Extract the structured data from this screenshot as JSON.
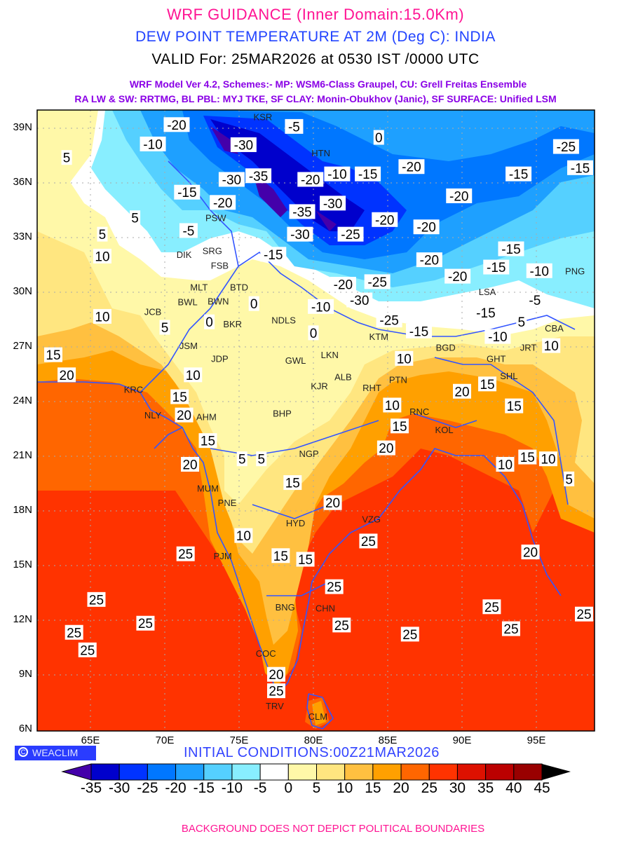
{
  "header": {
    "title": "WRF GUIDANCE (Inner Domain:15.0Km)",
    "subtitle": "DEW POINT TEMPERATURE AT 2M (Deg C): INDIA",
    "valid": "VALID For: 25MAR2026 at 0530 IST /0000 UTC",
    "model_line1": "WRF Model Ver 4.2, Schemes:- MP: WSM6-Class Graupel, CU: Grell Freitas Ensemble",
    "model_line2": "RA LW & SW: RRTMG, BL PBL: MYJ TKE, SF CLAY: Monin-Obukhov (Janic), SF SURFACE: Unified LSM"
  },
  "map": {
    "lat_labels": [
      "39N",
      "36N",
      "33N",
      "30N",
      "27N",
      "24N",
      "21N",
      "18N",
      "15N",
      "12N",
      "9N",
      "6N"
    ],
    "lon_labels": [
      "65E",
      "70E",
      "75E",
      "80E",
      "85E",
      "90E",
      "95E"
    ],
    "cities": [
      {
        "code": "KSR",
        "lon": 76.6,
        "lat": 39.8
      },
      {
        "code": "HTN",
        "lon": 80.5,
        "lat": 37.2
      },
      {
        "code": "PSW",
        "lon": 72.3,
        "lat": 34.1
      },
      {
        "code": "SRG",
        "lon": 73.2,
        "lat": 32.3
      },
      {
        "code": "DIK",
        "lon": 71.3,
        "lat": 32.1
      },
      {
        "code": "FSB",
        "lon": 73.7,
        "lat": 31.5
      },
      {
        "code": "MLT",
        "lon": 72.3,
        "lat": 30.3
      },
      {
        "code": "BWN",
        "lon": 73.6,
        "lat": 30.0
      },
      {
        "code": "BTD",
        "lon": 75.0,
        "lat": 30.3
      },
      {
        "code": "BWL",
        "lon": 72.2,
        "lat": 29.5
      },
      {
        "code": "JCB",
        "lon": 69.2,
        "lat": 28.5
      },
      {
        "code": "BKR",
        "lon": 73.9,
        "lat": 28.3
      },
      {
        "code": "NDLS",
        "lon": 78.0,
        "lat": 28.5
      },
      {
        "code": "JSM",
        "lon": 71.6,
        "lat": 27.1
      },
      {
        "code": "JDP",
        "lon": 73.7,
        "lat": 26.4
      },
      {
        "code": "GWL",
        "lon": 78.8,
        "lat": 26.3
      },
      {
        "code": "LKN",
        "lon": 81.1,
        "lat": 26.6
      },
      {
        "code": "ALB",
        "lon": 82.0,
        "lat": 25.4
      },
      {
        "code": "KJR",
        "lon": 80.4,
        "lat": 24.9
      },
      {
        "code": "PTN",
        "lon": 85.7,
        "lat": 25.7
      },
      {
        "code": "RHT",
        "lon": 84.6,
        "lat": 24.8
      },
      {
        "code": "KTM",
        "lon": 84.4,
        "lat": 27.6
      },
      {
        "code": "BGD",
        "lon": 88.9,
        "lat": 27.0
      },
      {
        "code": "GHT",
        "lon": 92.3,
        "lat": 26.4
      },
      {
        "code": "SHL",
        "lon": 92.4,
        "lat": 26.0
      },
      {
        "code": "JRT",
        "lon": 93.8,
        "lat": 27.0
      },
      {
        "code": "CBA",
        "lon": 96.2,
        "lat": 27.6
      },
      {
        "code": "LSA",
        "lon": 91.7,
        "lat": 29.6
      },
      {
        "code": "PNG",
        "lon": 97.6,
        "lat": 31.2
      },
      {
        "code": "KRC",
        "lon": 67.9,
        "lat": 24.7
      },
      {
        "code": "NLY",
        "lon": 69.2,
        "lat": 23.3
      },
      {
        "code": "AHM",
        "lon": 72.8,
        "lat": 23.2
      },
      {
        "code": "BHP",
        "lon": 77.9,
        "lat": 23.4
      },
      {
        "code": "RNC",
        "lon": 86.0,
        "lat": 23.5
      },
      {
        "code": "KOL",
        "lon": 88.8,
        "lat": 22.5
      },
      {
        "code": "NGP",
        "lon": 79.7,
        "lat": 21.2
      },
      {
        "code": "MUM",
        "lon": 72.9,
        "lat": 19.3
      },
      {
        "code": "PNE",
        "lon": 74.2,
        "lat": 18.5
      },
      {
        "code": "HYD",
        "lon": 78.8,
        "lat": 17.4
      },
      {
        "code": "VZG",
        "lon": 83.9,
        "lat": 17.6
      },
      {
        "code": "PJM",
        "lon": 73.9,
        "lat": 15.6
      },
      {
        "code": "BNG",
        "lon": 78.1,
        "lat": 12.8
      },
      {
        "code": "CHN",
        "lon": 80.8,
        "lat": 13.2
      },
      {
        "code": "COC",
        "lon": 76.8,
        "lat": 9.8
      },
      {
        "code": "TRV",
        "lon": 77.4,
        "lat": 8.6
      },
      {
        "code": "CLM",
        "lon": 80.3,
        "lat": 6.8
      }
    ],
    "contour_labels": [
      {
        "v": "-20",
        "lon": 70.8,
        "lat": 39.2
      },
      {
        "v": "-10",
        "lon": 69.2,
        "lat": 38.6
      },
      {
        "v": "-30",
        "lon": 75.3,
        "lat": 38.1
      },
      {
        "v": "-5",
        "lon": 78.7,
        "lat": 39.1
      },
      {
        "v": "0",
        "lon": 84.4,
        "lat": 38.5
      },
      {
        "v": "-25",
        "lon": 97.0,
        "lat": 38.0
      },
      {
        "v": "-15",
        "lon": 98.3,
        "lat": 37.3
      },
      {
        "v": "-20",
        "lon": 79.8,
        "lat": 36.2
      },
      {
        "v": "-10",
        "lon": 81.6,
        "lat": 36.5
      },
      {
        "v": "-15",
        "lon": 83.0,
        "lat": 36.5
      },
      {
        "v": "-20",
        "lon": 86.6,
        "lat": 36.9
      },
      {
        "v": "-15",
        "lon": 93.8,
        "lat": 36.5
      },
      {
        "v": "-35",
        "lon": 76.3,
        "lat": 36.4
      },
      {
        "v": "-30",
        "lon": 74.5,
        "lat": 36.2
      },
      {
        "v": "-15",
        "lon": 71.5,
        "lat": 35.5
      },
      {
        "v": "-20",
        "lon": 73.9,
        "lat": 35.4
      },
      {
        "v": "-20",
        "lon": 89.8,
        "lat": 35.3
      },
      {
        "v": "-30",
        "lon": 81.3,
        "lat": 34.9
      },
      {
        "v": "-20",
        "lon": 84.8,
        "lat": 34.0
      },
      {
        "v": "-20",
        "lon": 87.6,
        "lat": 33.6
      },
      {
        "v": "-25",
        "lon": 82.5,
        "lat": 33.2
      },
      {
        "v": "-30",
        "lon": 79.1,
        "lat": 33.2
      },
      {
        "v": "-35",
        "lon": 80.0,
        "lat": 33.9
      },
      {
        "v": "-5",
        "lon": 71.6,
        "lat": 33.4
      },
      {
        "v": "-15",
        "lon": 77.3,
        "lat": 32.1
      },
      {
        "v": "-15",
        "lon": 93.3,
        "lat": 32.4
      },
      {
        "v": "-15",
        "lon": 92.3,
        "lat": 31.4
      },
      {
        "v": "-10",
        "lon": 95.2,
        "lat": 31.2
      },
      {
        "v": "-20",
        "lon": 87.8,
        "lat": 31.8
      },
      {
        "v": "-20",
        "lon": 89.7,
        "lat": 30.9
      },
      {
        "v": "-25",
        "lon": 84.3,
        "lat": 30.6
      },
      {
        "v": "-30",
        "lon": 83.1,
        "lat": 29.6
      },
      {
        "v": "-20",
        "lon": 82.0,
        "lat": 30.0
      },
      {
        "v": "-10",
        "lon": 80.5,
        "lat": 29.7
      },
      {
        "v": "-5",
        "lon": 94.9,
        "lat": 29.6
      },
      {
        "v": "-15",
        "lon": 91.6,
        "lat": 28.9
      },
      {
        "v": "-25",
        "lon": 85.1,
        "lat": 28.5
      },
      {
        "v": "-15",
        "lon": 87.1,
        "lat": 27.9
      },
      {
        "v": "-10",
        "lon": 92.4,
        "lat": 27.6
      },
      {
        "v": "5",
        "lon": 94.0,
        "lat": 28.4
      },
      {
        "v": "15",
        "lon": 62.5,
        "lat": 26.6
      },
      {
        "v": "10",
        "lon": 65.8,
        "lat": 28.7
      },
      {
        "v": "5",
        "lon": 63.4,
        "lat": 37.4
      },
      {
        "v": "5",
        "lon": 68.0,
        "lat": 34.1
      },
      {
        "v": "5",
        "lon": 65.8,
        "lat": 33.2
      },
      {
        "v": "10",
        "lon": 65.8,
        "lat": 32.0
      },
      {
        "v": "20",
        "lon": 63.4,
        "lat": 25.5
      },
      {
        "v": "10",
        "lon": 71.9,
        "lat": 25.5
      },
      {
        "v": "15",
        "lon": 71.0,
        "lat": 24.3
      },
      {
        "v": "20",
        "lon": 71.3,
        "lat": 23.3
      },
      {
        "v": "15",
        "lon": 72.9,
        "lat": 21.9
      },
      {
        "v": "20",
        "lon": 71.7,
        "lat": 20.6
      },
      {
        "v": "0",
        "lon": 73.0,
        "lat": 28.4
      },
      {
        "v": "0",
        "lon": 76.0,
        "lat": 29.4
      },
      {
        "v": "0",
        "lon": 80.0,
        "lat": 27.8
      },
      {
        "v": "5",
        "lon": 70.0,
        "lat": 28.1
      },
      {
        "v": "5",
        "lon": 75.2,
        "lat": 20.9
      },
      {
        "v": "5",
        "lon": 76.5,
        "lat": 20.9
      },
      {
        "v": "15",
        "lon": 78.6,
        "lat": 19.6
      },
      {
        "v": "20",
        "lon": 81.3,
        "lat": 18.5
      },
      {
        "v": "10",
        "lon": 75.3,
        "lat": 16.7
      },
      {
        "v": "15",
        "lon": 77.8,
        "lat": 15.6
      },
      {
        "v": "15",
        "lon": 78.8,
        "lat": 15.4
      },
      {
        "v": "25",
        "lon": 71.4,
        "lat": 15.7
      },
      {
        "v": "25",
        "lon": 83.7,
        "lat": 16.4
      },
      {
        "v": "25",
        "lon": 81.4,
        "lat": 13.9
      },
      {
        "v": "25",
        "lon": 65.4,
        "lat": 13.2
      },
      {
        "v": "25",
        "lon": 63.9,
        "lat": 11.4
      },
      {
        "v": "25",
        "lon": 64.8,
        "lat": 10.9
      },
      {
        "v": "25",
        "lon": 68.7,
        "lat": 11.9
      },
      {
        "v": "25",
        "lon": 81.9,
        "lat": 11.8
      },
      {
        "v": "25",
        "lon": 86.5,
        "lat": 11.3
      },
      {
        "v": "25",
        "lon": 92.0,
        "lat": 12.8
      },
      {
        "v": "25",
        "lon": 93.3,
        "lat": 11.6
      },
      {
        "v": "25",
        "lon": 98.3,
        "lat": 12.4
      },
      {
        "v": "20",
        "lon": 77.5,
        "lat": 9.1
      },
      {
        "v": "25",
        "lon": 77.5,
        "lat": 8.2
      },
      {
        "v": "20",
        "lon": 84.9,
        "lat": 21.5
      },
      {
        "v": "15",
        "lon": 85.8,
        "lat": 22.7
      },
      {
        "v": "10",
        "lon": 85.3,
        "lat": 23.0
      },
      {
        "v": "20",
        "lon": 90.0,
        "lat": 24.6
      },
      {
        "v": "15",
        "lon": 91.7,
        "lat": 25.0
      },
      {
        "v": "15",
        "lon": 93.5,
        "lat": 23.8
      },
      {
        "v": "10",
        "lon": 92.9,
        "lat": 20.6
      },
      {
        "v": "15",
        "lon": 94.4,
        "lat": 21.0
      },
      {
        "v": "10",
        "lon": 95.8,
        "lat": 20.9
      },
      {
        "v": "5",
        "lon": 97.2,
        "lat": 19.8
      },
      {
        "v": "20",
        "lon": 94.6,
        "lat": 15.8
      },
      {
        "v": "10",
        "lon": 96.0,
        "lat": 27.1
      },
      {
        "v": "10",
        "lon": 86.1,
        "lat": 26.4
      }
    ]
  },
  "branding": {
    "logo_text": "WEACLIM",
    "logo_symbol": "C"
  },
  "initial_conditions": "INITIAL CONDITIONS:00Z21MAR2026",
  "colorbar": {
    "labels": [
      "-35",
      "-30",
      "-25",
      "-20",
      "-15",
      "-10",
      "-5",
      "0",
      "5",
      "10",
      "15",
      "20",
      "25",
      "30",
      "35",
      "40",
      "45"
    ],
    "colors": [
      "#0000cc",
      "#0033ff",
      "#0077ff",
      "#1ea0ff",
      "#55d0ff",
      "#88eeff",
      "#ffffff",
      "#fff8a8",
      "#ffe680",
      "#ffc040",
      "#ffa000",
      "#ff6600",
      "#ff3300",
      "#dd1100",
      "#bb0000",
      "#990000"
    ],
    "under_color": "#4400aa",
    "over_color": "#000000"
  },
  "footer": "BACKGROUND DOES NOT DEPICT POLITICAL BOUNDARIES"
}
